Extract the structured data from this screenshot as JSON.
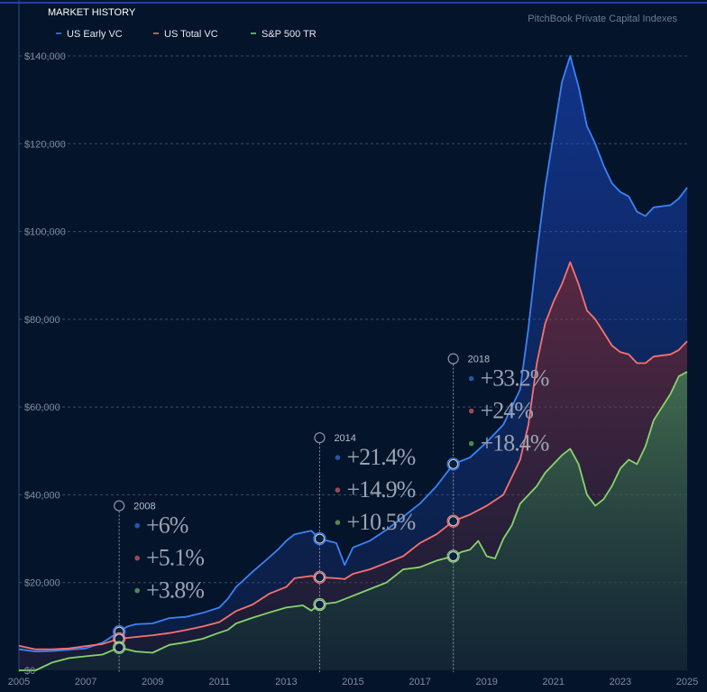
{
  "header": {
    "title": "MARKET HISTORY",
    "source": "PitchBook Private Capital Indexes"
  },
  "legend": [
    {
      "name": "US Early VC",
      "color": "#3b82f6"
    },
    {
      "name": "US Total VC",
      "color": "#f87171"
    },
    {
      "name": "S&P 500 TR",
      "color": "#86d46b"
    }
  ],
  "chart_data": {
    "type": "area",
    "title": "MARKET HISTORY",
    "x_range": [
      2005,
      2025
    ],
    "ylim": [
      0,
      140000
    ],
    "y_ticks": [
      "$0",
      "$20,000",
      "$40,000",
      "$60,000",
      "$80,000",
      "$100,000",
      "$120,000",
      "$140,000"
    ],
    "x_ticks": [
      "2005",
      "2007",
      "2009",
      "2011",
      "2013",
      "2015",
      "2017",
      "2019",
      "2021",
      "2023",
      "2025"
    ],
    "grid": true,
    "legend_position": "top-left",
    "series": [
      {
        "name": "US Early VC",
        "color": "#3b82f6",
        "points": [
          [
            2005.0,
            4800
          ],
          [
            2005.5,
            4300
          ],
          [
            2006.0,
            4400
          ],
          [
            2006.5,
            4700
          ],
          [
            2007.0,
            5000
          ],
          [
            2007.5,
            6300
          ],
          [
            2008.0,
            8800
          ],
          [
            2008.25,
            10000
          ],
          [
            2008.5,
            10500
          ],
          [
            2009.0,
            10700
          ],
          [
            2009.5,
            11900
          ],
          [
            2010.0,
            12200
          ],
          [
            2010.5,
            13100
          ],
          [
            2011.0,
            14300
          ],
          [
            2011.25,
            16300
          ],
          [
            2011.5,
            19000
          ],
          [
            2012.0,
            22500
          ],
          [
            2012.5,
            25800
          ],
          [
            2012.75,
            27500
          ],
          [
            2013.0,
            29500
          ],
          [
            2013.25,
            31000
          ],
          [
            2013.75,
            31800
          ],
          [
            2014.0,
            30000
          ],
          [
            2014.25,
            29500
          ],
          [
            2014.5,
            29000
          ],
          [
            2014.75,
            24000
          ],
          [
            2015.0,
            28000
          ],
          [
            2015.5,
            29500
          ],
          [
            2016.0,
            32000
          ],
          [
            2016.5,
            35000
          ],
          [
            2017.0,
            38000
          ],
          [
            2017.5,
            42000
          ],
          [
            2018.0,
            47000
          ],
          [
            2018.5,
            48500
          ],
          [
            2019.0,
            52000
          ],
          [
            2019.5,
            56000
          ],
          [
            2019.75,
            60000
          ],
          [
            2020.0,
            64000
          ],
          [
            2020.25,
            78000
          ],
          [
            2020.5,
            95000
          ],
          [
            2020.75,
            110000
          ],
          [
            2021.0,
            122000
          ],
          [
            2021.25,
            134000
          ],
          [
            2021.5,
            140000
          ],
          [
            2021.75,
            133000
          ],
          [
            2022.0,
            124000
          ],
          [
            2022.25,
            120000
          ],
          [
            2022.5,
            115000
          ],
          [
            2022.75,
            111000
          ],
          [
            2023.0,
            109000
          ],
          [
            2023.25,
            108000
          ],
          [
            2023.5,
            104500
          ],
          [
            2023.75,
            103500
          ],
          [
            2024.0,
            105500
          ],
          [
            2024.5,
            106000
          ],
          [
            2024.75,
            107500
          ],
          [
            2025.0,
            110000
          ]
        ]
      },
      {
        "name": "US Total VC",
        "color": "#f87171",
        "points": [
          [
            2005.0,
            5600
          ],
          [
            2005.5,
            4800
          ],
          [
            2006.0,
            4800
          ],
          [
            2006.5,
            5000
          ],
          [
            2007.0,
            5500
          ],
          [
            2007.5,
            6000
          ],
          [
            2008.0,
            7200
          ],
          [
            2008.5,
            7600
          ],
          [
            2009.0,
            8000
          ],
          [
            2009.5,
            8500
          ],
          [
            2010.0,
            9200
          ],
          [
            2010.5,
            10000
          ],
          [
            2011.0,
            11000
          ],
          [
            2011.5,
            13500
          ],
          [
            2012.0,
            15000
          ],
          [
            2012.5,
            17500
          ],
          [
            2013.0,
            19000
          ],
          [
            2013.25,
            21000
          ],
          [
            2013.75,
            21500
          ],
          [
            2014.0,
            21200
          ],
          [
            2014.5,
            21000
          ],
          [
            2014.75,
            20800
          ],
          [
            2015.0,
            22000
          ],
          [
            2015.5,
            23000
          ],
          [
            2016.0,
            24500
          ],
          [
            2016.5,
            26000
          ],
          [
            2017.0,
            29000
          ],
          [
            2017.5,
            31000
          ],
          [
            2018.0,
            34000
          ],
          [
            2018.5,
            35500
          ],
          [
            2019.0,
            37500
          ],
          [
            2019.5,
            40000
          ],
          [
            2019.75,
            44000
          ],
          [
            2020.0,
            48000
          ],
          [
            2020.25,
            56000
          ],
          [
            2020.5,
            70000
          ],
          [
            2020.75,
            79000
          ],
          [
            2021.0,
            84000
          ],
          [
            2021.25,
            88000
          ],
          [
            2021.5,
            93000
          ],
          [
            2021.75,
            88000
          ],
          [
            2022.0,
            82000
          ],
          [
            2022.25,
            80000
          ],
          [
            2022.5,
            77000
          ],
          [
            2022.75,
            74000
          ],
          [
            2023.0,
            72500
          ],
          [
            2023.25,
            72000
          ],
          [
            2023.5,
            70000
          ],
          [
            2023.75,
            70000
          ],
          [
            2024.0,
            71500
          ],
          [
            2024.5,
            72000
          ],
          [
            2024.75,
            73000
          ],
          [
            2025.0,
            75000
          ]
        ]
      },
      {
        "name": "S&P 500 TR",
        "color": "#86d46b",
        "points": [
          [
            2005.0,
            0
          ],
          [
            2005.5,
            0
          ],
          [
            2006.0,
            1800
          ],
          [
            2006.5,
            2800
          ],
          [
            2007.0,
            3200
          ],
          [
            2007.5,
            3600
          ],
          [
            2008.0,
            5200
          ],
          [
            2008.5,
            4300
          ],
          [
            2009.0,
            4000
          ],
          [
            2009.5,
            5800
          ],
          [
            2010.0,
            6400
          ],
          [
            2010.5,
            7200
          ],
          [
            2011.0,
            8600
          ],
          [
            2011.25,
            9200
          ],
          [
            2011.5,
            10700
          ],
          [
            2012.0,
            12000
          ],
          [
            2012.5,
            13200
          ],
          [
            2013.0,
            14300
          ],
          [
            2013.5,
            14800
          ],
          [
            2013.75,
            13600
          ],
          [
            2014.0,
            15000
          ],
          [
            2014.5,
            15500
          ],
          [
            2015.0,
            17000
          ],
          [
            2015.5,
            18500
          ],
          [
            2016.0,
            20000
          ],
          [
            2016.5,
            23000
          ],
          [
            2017.0,
            23500
          ],
          [
            2017.5,
            25000
          ],
          [
            2018.0,
            26000
          ],
          [
            2018.25,
            27000
          ],
          [
            2018.5,
            27500
          ],
          [
            2018.75,
            29500
          ],
          [
            2019.0,
            26000
          ],
          [
            2019.25,
            25500
          ],
          [
            2019.5,
            30000
          ],
          [
            2019.75,
            33000
          ],
          [
            2020.0,
            38000
          ],
          [
            2020.5,
            42000
          ],
          [
            2020.75,
            45000
          ],
          [
            2021.0,
            47000
          ],
          [
            2021.25,
            49000
          ],
          [
            2021.5,
            50500
          ],
          [
            2021.75,
            47000
          ],
          [
            2022.0,
            40000
          ],
          [
            2022.25,
            37500
          ],
          [
            2022.5,
            39000
          ],
          [
            2022.75,
            42000
          ],
          [
            2023.0,
            46000
          ],
          [
            2023.25,
            48000
          ],
          [
            2023.5,
            47000
          ],
          [
            2023.75,
            51000
          ],
          [
            2024.0,
            57000
          ],
          [
            2024.5,
            63000
          ],
          [
            2024.75,
            67000
          ],
          [
            2025.0,
            68000
          ]
        ]
      }
    ],
    "annotations": [
      {
        "year": "2008",
        "x": 2008,
        "values": [
          "+6%",
          "+5.1%",
          "+3.8%"
        ],
        "colors": [
          "#3b82f6",
          "#f87171",
          "#86d46b"
        ],
        "markers": [
          8800,
          7200,
          5200
        ],
        "top_value": 37500
      },
      {
        "year": "2014",
        "x": 2014,
        "values": [
          "+21.4%",
          "+14.9%",
          "+10.5%"
        ],
        "colors": [
          "#3b82f6",
          "#f87171",
          "#86d46b"
        ],
        "markers": [
          30000,
          21200,
          15000
        ],
        "top_value": 53000
      },
      {
        "year": "2018",
        "x": 2018,
        "values": [
          "+33.2%",
          "+24%",
          "+18.4%"
        ],
        "colors": [
          "#3b82f6",
          "#f87171",
          "#86d46b"
        ],
        "markers": [
          47000,
          34000,
          26000
        ],
        "top_value": 71000
      }
    ]
  }
}
